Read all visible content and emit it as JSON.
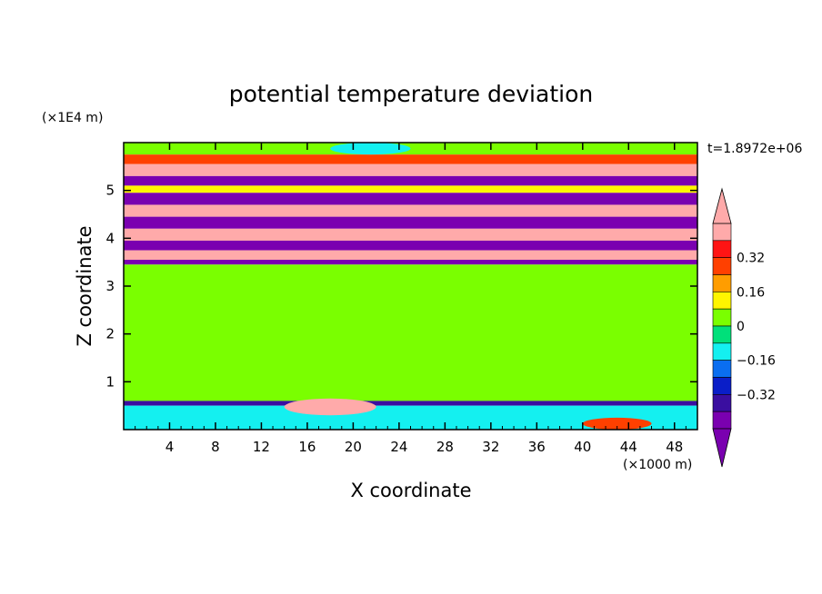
{
  "chart_data": {
    "type": "heatmap",
    "title": "potential temperature deviation",
    "xlabel": "X coordinate",
    "ylabel": "Z coordinate",
    "x_unit": "(×1000 m)",
    "y_unit": "(×1E4 m)",
    "time_label": "t=1.8972e+06",
    "xlim": [
      0,
      50
    ],
    "ylim": [
      0,
      6
    ],
    "x_ticks": [
      4,
      8,
      12,
      16,
      20,
      24,
      28,
      32,
      36,
      40,
      44,
      48
    ],
    "y_ticks": [
      1,
      2,
      3,
      4,
      5
    ],
    "colorbar": {
      "levels": [
        -0.4,
        -0.32,
        -0.24,
        -0.16,
        -0.08,
        0,
        0.08,
        0.16,
        0.24,
        0.32,
        0.4
      ],
      "labels": [
        "0.32",
        "0.16",
        "0",
        "−0.16",
        "−0.32"
      ],
      "label_values": [
        0.32,
        0.16,
        0,
        -0.16,
        -0.32
      ],
      "colors": [
        "#7a00b0",
        "#3a0ea0",
        "#0a1ec8",
        "#0a6ef0",
        "#14f0f0",
        "#00e07a",
        "#7aff00",
        "#fff500",
        "#ff9d00",
        "#ff4000",
        "#ff1414",
        "#ffaaaa"
      ],
      "under_color": "#7a00b0",
      "over_color": "#ffaaaa"
    },
    "bands": [
      {
        "z": [
          5.75,
          6.0
        ],
        "value": 0.0
      },
      {
        "z": [
          5.55,
          5.75
        ],
        "value": 0.3
      },
      {
        "z": [
          5.3,
          5.55
        ],
        "value": 0.45
      },
      {
        "z": [
          5.1,
          5.3
        ],
        "value": -0.45
      },
      {
        "z": [
          4.95,
          5.1
        ],
        "value": 0.08
      },
      {
        "z": [
          4.7,
          4.95
        ],
        "value": -0.45
      },
      {
        "z": [
          4.45,
          4.7
        ],
        "value": 0.45
      },
      {
        "z": [
          4.2,
          4.45
        ],
        "value": -0.45
      },
      {
        "z": [
          3.95,
          4.2
        ],
        "value": 0.45
      },
      {
        "z": [
          3.75,
          3.95
        ],
        "value": -0.45
      },
      {
        "z": [
          3.55,
          3.75
        ],
        "value": 0.45
      },
      {
        "z": [
          3.45,
          3.55
        ],
        "value": -0.45
      },
      {
        "z": [
          0.6,
          3.45
        ],
        "value": 0.03
      },
      {
        "z": [
          0.5,
          0.6
        ],
        "value": -0.4
      },
      {
        "z": [
          0.0,
          0.5
        ],
        "value": -0.1
      }
    ],
    "patches": [
      {
        "x": [
          14,
          22
        ],
        "z": [
          0.3,
          0.65
        ],
        "value": 0.45
      },
      {
        "x": [
          40,
          46
        ],
        "z": [
          0.0,
          0.25
        ],
        "value": 0.3
      },
      {
        "x": [
          18,
          25
        ],
        "z": [
          5.75,
          6.0
        ],
        "value": -0.1
      }
    ]
  }
}
